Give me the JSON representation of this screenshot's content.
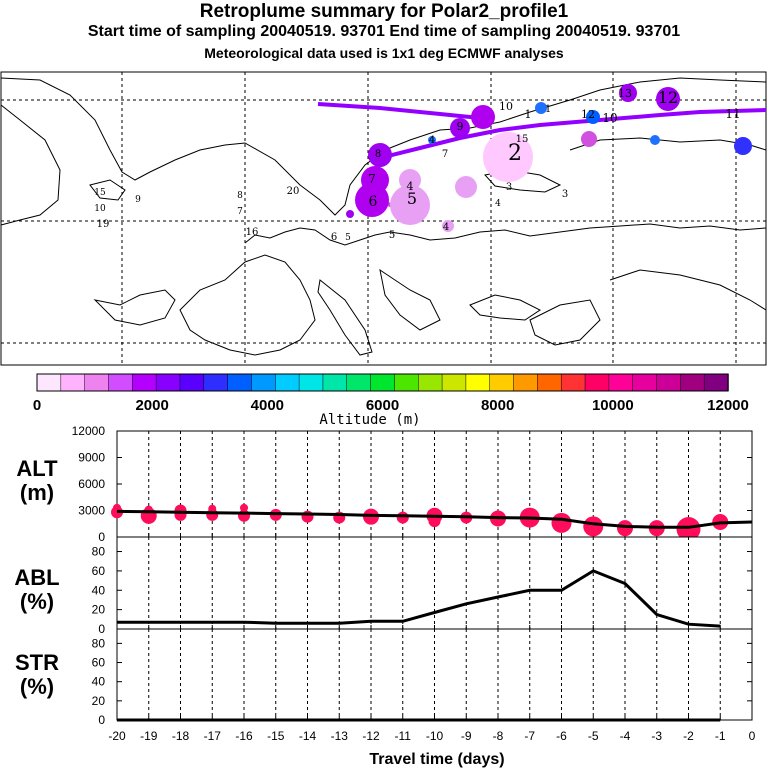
{
  "title": {
    "line1": "Retroplume summary for Polar2_profile1",
    "line2": "Start time of sampling 20040519. 93701     End time of sampling 20040519. 93701",
    "line3": "Meteorological data used is 1x1 deg ECMWF analyses"
  },
  "colorbar": {
    "title": "Altitude (m)",
    "tick_labels": [
      "0",
      "2000",
      "4000",
      "6000",
      "8000",
      "10000",
      "12000"
    ],
    "colors": [
      "#ffe6ff",
      "#ffb3ff",
      "#ee82ee",
      "#d24dff",
      "#b300ff",
      "#8800ff",
      "#5a00ff",
      "#2e2eff",
      "#0060ff",
      "#0099ff",
      "#00ccff",
      "#00e6e6",
      "#00e6a8",
      "#00e66b",
      "#00e62e",
      "#4de600",
      "#99e600",
      "#cce600",
      "#ffff00",
      "#ffcc00",
      "#ff9900",
      "#ff6600",
      "#ff3333",
      "#ff0066",
      "#ff0099",
      "#e6009e",
      "#cc0099",
      "#a00080",
      "#800080"
    ]
  },
  "map": {
    "labels": [
      {
        "t": "1",
        "c": "#6a0dad"
      },
      {
        "t": "2",
        "c": "#ff99ff"
      },
      {
        "t": "3",
        "c": "#ff99ff"
      },
      {
        "t": "4",
        "c": "#d88ce8"
      },
      {
        "t": "5",
        "c": "#d88ce8"
      },
      {
        "t": "6",
        "c": "#a020f0"
      },
      {
        "t": "7",
        "c": "#a020f0"
      },
      {
        "t": "8",
        "c": "#a020f0"
      },
      {
        "t": "9",
        "c": "#8a2be2"
      },
      {
        "t": "10",
        "c": "#8a2be2"
      },
      {
        "t": "11",
        "c": "#9400d3"
      },
      {
        "t": "12",
        "c": "#8a2be2"
      },
      {
        "t": "13",
        "c": "#8a2be2"
      },
      {
        "t": "14",
        "c": "#9932cc"
      },
      {
        "t": "15",
        "c": "#ff99ff"
      },
      {
        "t": "16",
        "c": "#9932cc"
      },
      {
        "t": "17",
        "c": "#0077ff"
      },
      {
        "t": "18",
        "c": "#0055ff"
      },
      {
        "t": "19",
        "c": "#1e90ff"
      },
      {
        "t": "20",
        "c": "#0066ff"
      }
    ]
  },
  "panels": {
    "alt": {
      "label_line1": "ALT",
      "label_line2": "(m)"
    },
    "abl": {
      "label_line1": "ABL",
      "label_line2": "(%)"
    },
    "str": {
      "label_line1": "STR",
      "label_line2": "(%)"
    }
  },
  "xlabel": "Travel time (days)",
  "chart_data": [
    {
      "type": "line",
      "title": "ALT (m)",
      "ylabel": "ALT (m)",
      "xlabel": "Travel time (days)",
      "ylim": [
        0,
        12000
      ],
      "yticks": [
        0,
        3000,
        6000,
        9000,
        12000
      ],
      "xlim": [
        -20,
        0
      ],
      "x": [
        -20,
        -19,
        -18,
        -17,
        -16,
        -15,
        -14,
        -13,
        -12,
        -11,
        -10,
        -9,
        -8,
        -7,
        -6,
        -5,
        -4,
        -3,
        -2,
        -1,
        0
      ],
      "values": [
        2900,
        2850,
        2800,
        2750,
        2700,
        2650,
        2600,
        2550,
        2450,
        2400,
        2350,
        2300,
        2200,
        2150,
        2000,
        1500,
        1200,
        1100,
        1100,
        1600,
        1700
      ],
      "plume_dots": [
        {
          "x": -20,
          "y": 3300,
          "s": 1
        },
        {
          "x": -20,
          "y": 2800,
          "s": 2
        },
        {
          "x": -19,
          "y": 3100,
          "s": 1
        },
        {
          "x": -19,
          "y": 2400,
          "s": 3
        },
        {
          "x": -18,
          "y": 3000,
          "s": 2
        },
        {
          "x": -18,
          "y": 2500,
          "s": 2
        },
        {
          "x": -17,
          "y": 3200,
          "s": 1
        },
        {
          "x": -17,
          "y": 2500,
          "s": 2
        },
        {
          "x": -16,
          "y": 3300,
          "s": 1
        },
        {
          "x": -16,
          "y": 2400,
          "s": 2
        },
        {
          "x": -15,
          "y": 2500,
          "s": 2
        },
        {
          "x": -14,
          "y": 2300,
          "s": 2
        },
        {
          "x": -13,
          "y": 2200,
          "s": 2
        },
        {
          "x": -12,
          "y": 2300,
          "s": 3
        },
        {
          "x": -11,
          "y": 2200,
          "s": 2
        },
        {
          "x": -10,
          "y": 2400,
          "s": 3
        },
        {
          "x": -10,
          "y": 1800,
          "s": 2
        },
        {
          "x": -9,
          "y": 2200,
          "s": 2
        },
        {
          "x": -8,
          "y": 2100,
          "s": 3
        },
        {
          "x": -7,
          "y": 2200,
          "s": 4
        },
        {
          "x": -6,
          "y": 1600,
          "s": 4
        },
        {
          "x": -5,
          "y": 1200,
          "s": 4
        },
        {
          "x": -4,
          "y": 1000,
          "s": 3
        },
        {
          "x": -3,
          "y": 1000,
          "s": 3
        },
        {
          "x": -2,
          "y": 900,
          "s": 5
        },
        {
          "x": -1,
          "y": 1700,
          "s": 3
        }
      ]
    },
    {
      "type": "line",
      "title": "ABL (%)",
      "ylabel": "ABL (%)",
      "ylim": [
        0,
        95
      ],
      "yticks": [
        0,
        20,
        40,
        60,
        80
      ],
      "xlim": [
        -20,
        0
      ],
      "x": [
        -20,
        -19,
        -18,
        -17,
        -16,
        -15,
        -14,
        -13,
        -12,
        -11,
        -10,
        -9,
        -8,
        -7,
        -6,
        -5,
        -4,
        -3,
        -2,
        -1
      ],
      "values": [
        7,
        7,
        7,
        7,
        7,
        6,
        6,
        6,
        8,
        8,
        17,
        26,
        33,
        40,
        40,
        60,
        47,
        15,
        5,
        3
      ]
    },
    {
      "type": "line",
      "title": "STR (%)",
      "ylabel": "STR (%)",
      "xlabel": "Travel time (days)",
      "ylim": [
        0,
        95
      ],
      "yticks": [
        0,
        20,
        40,
        60,
        80
      ],
      "xlim": [
        -20,
        0
      ],
      "xtick_labels": [
        "-20",
        "-19",
        "-18",
        "-17",
        "-16",
        "-15",
        "-14",
        "-13",
        "-12",
        "-11",
        "-10",
        "-9",
        "-8",
        "-7",
        "-6",
        "-5",
        "-4",
        "-3",
        "-2",
        "-1",
        "0"
      ],
      "x": [
        -20,
        -19,
        -18,
        -17,
        -16,
        -15,
        -14,
        -13,
        -12,
        -11,
        -10,
        -9,
        -8,
        -7,
        -6,
        -5,
        -4,
        -3,
        -2,
        -1
      ],
      "values": [
        0,
        0,
        0,
        0,
        0,
        0,
        0,
        0,
        0,
        0,
        0,
        0,
        0,
        0,
        0,
        0,
        0,
        0,
        0,
        0
      ]
    }
  ]
}
